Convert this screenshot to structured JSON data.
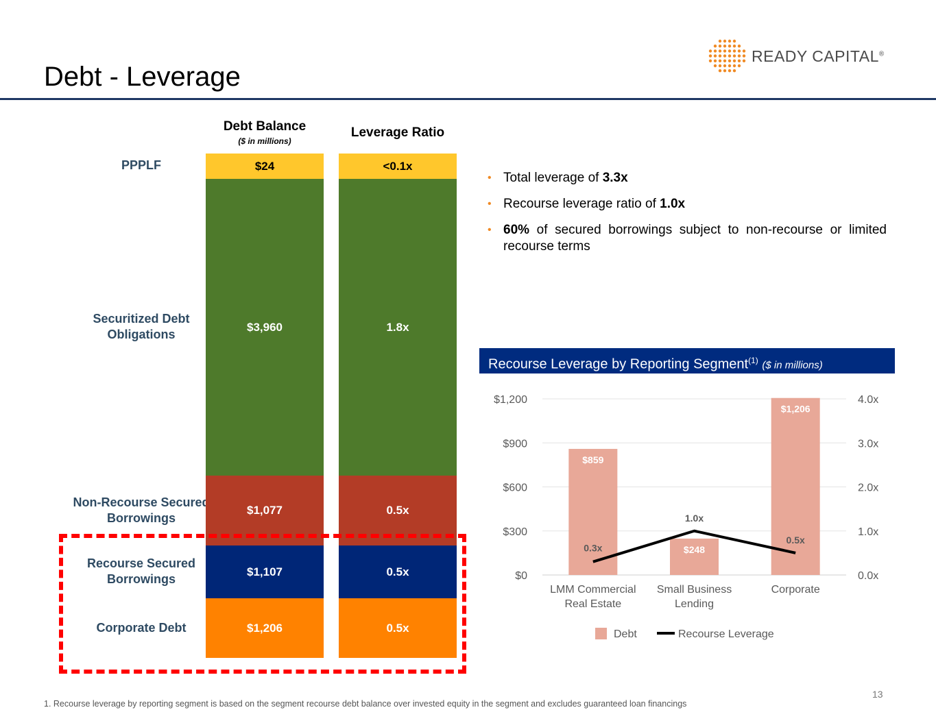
{
  "title": "Debt - Leverage",
  "logo": {
    "text": "READY CAPITAL",
    "mark": "®"
  },
  "columns": {
    "debt_balance": "Debt Balance",
    "debt_balance_sub": "($ in millions)",
    "leverage_ratio": "Leverage Ratio"
  },
  "rows": [
    {
      "label": "PPPLF",
      "balance": "$24",
      "ratio": "<0.1x",
      "color": "#ffc72c"
    },
    {
      "label": "Securitized Debt Obligations",
      "balance": "$3,960",
      "ratio": "1.8x",
      "color": "#4e7a2b"
    },
    {
      "label": "Non-Recourse Secured Borrowings",
      "balance": "$1,077",
      "ratio": "0.5x",
      "color": "#b33c26"
    },
    {
      "label": "Recourse Secured Borrowings",
      "balance": "$1,107",
      "ratio": "0.5x",
      "color": "#002677"
    },
    {
      "label": "Corporate Debt",
      "balance": "$1,206",
      "ratio": "0.5x",
      "color": "#ff8200"
    }
  ],
  "bullets": [
    {
      "pre": "Total leverage of ",
      "bold": "3.3x",
      "post": ""
    },
    {
      "pre": "Recourse leverage ratio of ",
      "bold": "1.0x",
      "post": ""
    },
    {
      "pre": "",
      "bold": "60%",
      "post": " of secured borrowings subject to non-recourse or limited recourse terms"
    }
  ],
  "chart_header": {
    "title": "Recourse Leverage by Reporting Segment",
    "sup": "(1)",
    "sub": "($ in millions)"
  },
  "chart_data": {
    "type": "bar",
    "title": "Recourse Leverage by Reporting Segment",
    "categories": [
      "LMM Commercial Real Estate",
      "Small Business Lending",
      "Corporate"
    ],
    "category_lines": [
      [
        "LMM Commercial",
        "Real Estate"
      ],
      [
        "Small Business",
        "Lending"
      ],
      [
        "Corporate"
      ]
    ],
    "series": [
      {
        "name": "Debt",
        "kind": "bar",
        "axis": "left",
        "values": [
          859,
          248,
          1206
        ],
        "labels": [
          "$859",
          "$248",
          "$1,206"
        ],
        "color": "#e8a898"
      },
      {
        "name": "Recourse Leverage",
        "kind": "line",
        "axis": "right",
        "values": [
          0.3,
          1.0,
          0.5
        ],
        "labels": [
          "0.3x",
          "1.0x",
          "0.5x"
        ],
        "color": "#000000"
      }
    ],
    "y_left": {
      "ylim": [
        0,
        1200
      ],
      "ticks": [
        0,
        300,
        600,
        900,
        1200
      ],
      "tick_labels": [
        "$0",
        "$300",
        "$600",
        "$900",
        "$1,200"
      ]
    },
    "y_right": {
      "ylim": [
        0,
        4
      ],
      "ticks": [
        0,
        1,
        2,
        3,
        4
      ],
      "tick_labels": [
        "0.0x",
        "1.0x",
        "2.0x",
        "3.0x",
        "4.0x"
      ]
    },
    "grid": true,
    "legend": "bottom"
  },
  "footnote": "1. Recourse leverage by reporting segment is based on the segment recourse debt balance over invested equity in the segment and excludes guaranteed loan financings",
  "page_number": "13"
}
